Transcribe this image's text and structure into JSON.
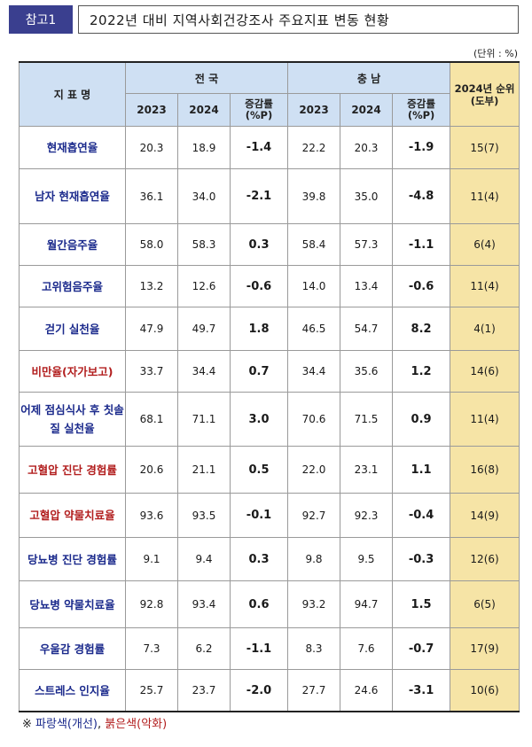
{
  "header": {
    "tag": "참고1",
    "title": "2022년 대비 지역사회건강조사 주요지표 변동 현황"
  },
  "unit": "(단위 : %)",
  "columns": {
    "indicator": "지 표 명",
    "national": "전 국",
    "chungnam": "충 남",
    "rank": "2024년 순위(도부)",
    "y2023": "2023",
    "y2024": "2024",
    "change": "증감률 (%P)"
  },
  "rows": [
    {
      "name": "현재흡연율",
      "color": "#1b2a8c",
      "n2023": "20.3",
      "n2024": "18.9",
      "nchg": "-1.4",
      "c2023": "22.2",
      "c2024": "20.3",
      "cchg": "-1.9",
      "rank": "15(7)"
    },
    {
      "name": "남자 현재흡연율",
      "color": "#1b2a8c",
      "n2023": "36.1",
      "n2024": "34.0",
      "nchg": "-2.1",
      "c2023": "39.8",
      "c2024": "35.0",
      "cchg": "-4.8",
      "rank": "11(4)"
    },
    {
      "name": "월간음주율",
      "color": "#1b2a8c",
      "n2023": "58.0",
      "n2024": "58.3",
      "nchg": "0.3",
      "c2023": "58.4",
      "c2024": "57.3",
      "cchg": "-1.1",
      "rank": "6(4)"
    },
    {
      "name": "고위험음주율",
      "color": "#1b2a8c",
      "n2023": "13.2",
      "n2024": "12.6",
      "nchg": "-0.6",
      "c2023": "14.0",
      "c2024": "13.4",
      "cchg": "-0.6",
      "rank": "11(4)"
    },
    {
      "name": "걷기 실천율",
      "color": "#1b2a8c",
      "n2023": "47.9",
      "n2024": "49.7",
      "nchg": "1.8",
      "c2023": "46.5",
      "c2024": "54.7",
      "cchg": "8.2",
      "rank": "4(1)"
    },
    {
      "name": "비만율(자가보고)",
      "color": "#b21e1e",
      "n2023": "33.7",
      "n2024": "34.4",
      "nchg": "0.7",
      "c2023": "34.4",
      "c2024": "35.6",
      "cchg": "1.2",
      "rank": "14(6)"
    },
    {
      "name": "어제 점심식사 후 칫솔질 실천율",
      "color": "#1b2a8c",
      "n2023": "68.1",
      "n2024": "71.1",
      "nchg": "3.0",
      "c2023": "70.6",
      "c2024": "71.5",
      "cchg": "0.9",
      "rank": "11(4)"
    },
    {
      "name": "고혈압 진단 경험률",
      "color": "#b21e1e",
      "n2023": "20.6",
      "n2024": "21.1",
      "nchg": "0.5",
      "c2023": "22.0",
      "c2024": "23.1",
      "cchg": "1.1",
      "rank": "16(8)"
    },
    {
      "name": "고혈압 약물치료율",
      "color": "#b21e1e",
      "n2023": "93.6",
      "n2024": "93.5",
      "nchg": "-0.1",
      "c2023": "92.7",
      "c2024": "92.3",
      "cchg": "-0.4",
      "rank": "14(9)"
    },
    {
      "name": "당뇨병 진단 경험률",
      "color": "#1b2a8c",
      "n2023": "9.1",
      "n2024": "9.4",
      "nchg": "0.3",
      "c2023": "9.8",
      "c2024": "9.5",
      "cchg": "-0.3",
      "rank": "12(6)"
    },
    {
      "name": "당뇨병 약물치료율",
      "color": "#1b2a8c",
      "n2023": "92.8",
      "n2024": "93.4",
      "nchg": "0.6",
      "c2023": "93.2",
      "c2024": "94.7",
      "cchg": "1.5",
      "rank": "6(5)"
    },
    {
      "name": "우울감 경험률",
      "color": "#1b2a8c",
      "n2023": "7.3",
      "n2024": "6.2",
      "nchg": "-1.1",
      "c2023": "8.3",
      "c2024": "7.6",
      "cchg": "-0.7",
      "rank": "17(9)"
    },
    {
      "name": "스트레스 인지율",
      "color": "#1b2a8c",
      "n2023": "25.7",
      "n2024": "23.7",
      "nchg": "-2.0",
      "c2023": "27.7",
      "c2024": "24.6",
      "cchg": "-3.1",
      "rank": "10(6)"
    }
  ],
  "legend": {
    "prefix": "※ ",
    "blue": "파랑색(개선)",
    "sep": ", ",
    "red": "붉은색(악화)"
  }
}
